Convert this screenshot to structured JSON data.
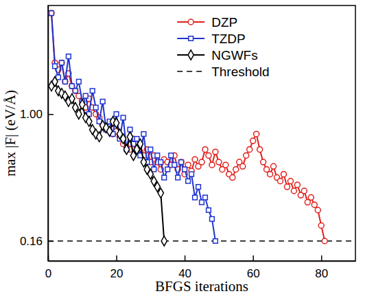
{
  "chart_data": {
    "type": "line",
    "x_label": "BFGS iterations",
    "y_label": "max |F| (eV/Å)",
    "log": "y",
    "legend": "top",
    "xlim": [
      0,
      90
    ],
    "xticks": [
      0,
      20,
      40,
      60,
      80
    ],
    "ylim": [
      0.12,
      4.8
    ],
    "yticks": [
      {
        "value": 1,
        "label": "1.00"
      },
      0.16
    ],
    "x": [
      1,
      2,
      3,
      4,
      5,
      6,
      7,
      8,
      9,
      10,
      11,
      12,
      13,
      14,
      15,
      16,
      17,
      18,
      19,
      20,
      21,
      22,
      23,
      24,
      25,
      26,
      27,
      28,
      29,
      30,
      31,
      32,
      33,
      34,
      35,
      36,
      37,
      38,
      39,
      40,
      41,
      42,
      43,
      44,
      45,
      46,
      47,
      48,
      49,
      50,
      51,
      52,
      53,
      54,
      55,
      56,
      57,
      58,
      59,
      60,
      61,
      62,
      63,
      64,
      65,
      66,
      67,
      68,
      69,
      70,
      71,
      72,
      73,
      74,
      75,
      76,
      77,
      78,
      79,
      80,
      81
    ],
    "series": [
      {
        "name": "DZP",
        "color": "#e0201c",
        "marker": "circle",
        "line_style": "solid",
        "values": [
          4.3,
          2.1,
          1.9,
          2.1,
          1.6,
          1.8,
          1.5,
          1.4,
          1.3,
          1.2,
          1.1,
          1.25,
          1.1,
          1.0,
          0.95,
          0.85,
          0.8,
          0.85,
          0.75,
          0.78,
          0.72,
          0.65,
          0.62,
          0.6,
          0.7,
          0.62,
          0.58,
          0.55,
          0.6,
          0.5,
          0.55,
          0.5,
          0.45,
          0.52,
          0.5,
          0.48,
          0.55,
          0.45,
          0.5,
          0.42,
          0.48,
          0.44,
          0.52,
          0.47,
          0.5,
          0.6,
          0.55,
          0.48,
          0.58,
          0.5,
          0.45,
          0.48,
          0.42,
          0.4,
          0.45,
          0.5,
          0.47,
          0.55,
          0.6,
          0.68,
          0.75,
          0.6,
          0.5,
          0.45,
          0.42,
          0.47,
          0.4,
          0.38,
          0.42,
          0.35,
          0.38,
          0.33,
          0.36,
          0.31,
          0.33,
          0.28,
          0.3,
          0.27,
          0.25,
          0.2,
          0.16
        ]
      },
      {
        "name": "TZDP",
        "color": "#1f35d0",
        "marker": "square",
        "line_style": "solid",
        "values": [
          4.3,
          2.0,
          1.7,
          2.1,
          1.6,
          2.3,
          1.5,
          1.4,
          1.6,
          1.2,
          1.3,
          1.0,
          1.4,
          1.1,
          0.9,
          1.2,
          0.8,
          0.9,
          0.75,
          1.0,
          0.7,
          0.95,
          0.6,
          0.8,
          0.65,
          0.7,
          0.55,
          0.75,
          0.5,
          0.6,
          0.45,
          0.55,
          0.5,
          0.4,
          0.45,
          0.55,
          0.48,
          0.4,
          0.5,
          0.45,
          0.38,
          0.42,
          0.3,
          0.35,
          0.28,
          0.3,
          0.25,
          0.22,
          0.16,
          null,
          null,
          null,
          null,
          null,
          null,
          null,
          null,
          null,
          null,
          null,
          null,
          null,
          null,
          null,
          null,
          null,
          null,
          null,
          null,
          null,
          null,
          null,
          null,
          null,
          null,
          null,
          null,
          null,
          null,
          null,
          null
        ]
      },
      {
        "name": "NGWFs",
        "color": "#000000",
        "marker": "diamond",
        "line_style": "solid",
        "values": [
          1.5,
          1.6,
          1.4,
          1.35,
          1.3,
          1.2,
          1.25,
          1.1,
          1.0,
          1.15,
          0.95,
          0.9,
          0.8,
          0.75,
          0.72,
          0.85,
          0.82,
          0.78,
          0.9,
          0.88,
          0.75,
          0.7,
          0.6,
          0.72,
          0.55,
          0.6,
          0.65,
          0.5,
          0.45,
          0.42,
          0.38,
          0.35,
          0.32,
          0.16,
          null,
          null,
          null,
          null,
          null,
          null,
          null,
          null,
          null,
          null,
          null,
          null,
          null,
          null,
          null,
          null,
          null,
          null,
          null,
          null,
          null,
          null,
          null,
          null,
          null,
          null,
          null,
          null,
          null,
          null,
          null,
          null,
          null,
          null,
          null,
          null,
          null,
          null,
          null,
          null,
          null,
          null,
          null,
          null,
          null,
          null,
          null
        ]
      }
    ],
    "reference_lines": [
      {
        "name": "Threshold",
        "value": 0.16,
        "color": "#000000",
        "line_style": "dashed"
      }
    ]
  }
}
